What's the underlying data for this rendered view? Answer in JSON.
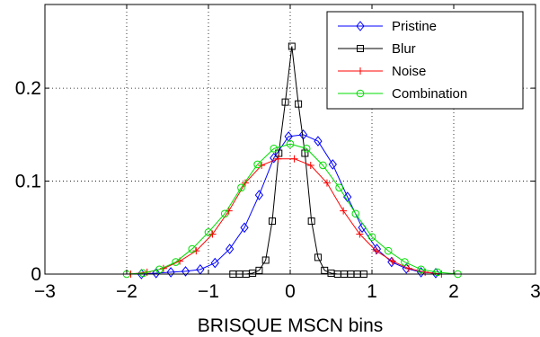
{
  "chart_data": {
    "type": "line",
    "xlabel": "BRISQUE MSCN bins",
    "ylabel": "",
    "xlim": [
      -3,
      3
    ],
    "ylim": [
      0,
      0.29
    ],
    "xticks": [
      -3,
      -2,
      -1,
      0,
      1,
      2,
      3
    ],
    "xtick_labels": [
      "−3",
      "−2",
      "−1",
      "0",
      "1",
      "2",
      "3"
    ],
    "yticks": [
      0,
      0.1,
      0.2
    ],
    "ytick_labels": [
      "0",
      "0.1",
      "0.2"
    ],
    "grid": true,
    "legend_position": "top-right",
    "series": [
      {
        "name": "Pristine",
        "color": "#0000ff",
        "marker": "diamond",
        "x": [
          -1.82,
          -1.64,
          -1.46,
          -1.28,
          -1.1,
          -0.92,
          -0.74,
          -0.56,
          -0.38,
          -0.2,
          -0.02,
          0.16,
          0.34,
          0.52,
          0.7,
          0.88,
          1.06,
          1.24,
          1.42,
          1.6,
          1.78
        ],
        "y": [
          0.0,
          0.001,
          0.002,
          0.003,
          0.005,
          0.012,
          0.027,
          0.05,
          0.085,
          0.125,
          0.148,
          0.15,
          0.143,
          0.118,
          0.083,
          0.05,
          0.027,
          0.013,
          0.006,
          0.002,
          0.001
        ]
      },
      {
        "name": "Blur",
        "color": "#000000",
        "marker": "square",
        "x": [
          -0.7,
          -0.62,
          -0.54,
          -0.46,
          -0.38,
          -0.3,
          -0.22,
          -0.14,
          -0.06,
          0.02,
          0.1,
          0.18,
          0.26,
          0.34,
          0.42,
          0.5,
          0.58,
          0.66,
          0.74,
          0.82,
          0.9
        ],
        "y": [
          0.0,
          0.0,
          0.0,
          0.001,
          0.004,
          0.015,
          0.057,
          0.13,
          0.185,
          0.245,
          0.183,
          0.13,
          0.057,
          0.018,
          0.004,
          0.001,
          0.0,
          0.0,
          0.0,
          0.0,
          0.0
        ]
      },
      {
        "name": "Noise",
        "color": "#ff0000",
        "marker": "plus",
        "x": [
          -1.95,
          -1.75,
          -1.55,
          -1.35,
          -1.15,
          -0.95,
          -0.75,
          -0.55,
          -0.35,
          -0.15,
          0.05,
          0.25,
          0.45,
          0.65,
          0.85,
          1.05,
          1.25,
          1.45,
          1.65,
          1.85
        ],
        "y": [
          0.0,
          0.002,
          0.006,
          0.014,
          0.025,
          0.043,
          0.068,
          0.098,
          0.117,
          0.124,
          0.124,
          0.117,
          0.098,
          0.068,
          0.043,
          0.025,
          0.014,
          0.006,
          0.002,
          0.0
        ]
      },
      {
        "name": "Combination",
        "color": "#00dd00",
        "marker": "circle",
        "x": [
          -2.0,
          -1.8,
          -1.6,
          -1.4,
          -1.2,
          -1.0,
          -0.8,
          -0.6,
          -0.4,
          -0.2,
          0.0,
          0.2,
          0.4,
          0.6,
          0.8,
          1.0,
          1.2,
          1.4,
          1.6,
          1.8,
          2.05
        ],
        "y": [
          0.0,
          0.001,
          0.005,
          0.013,
          0.027,
          0.045,
          0.065,
          0.093,
          0.118,
          0.135,
          0.14,
          0.135,
          0.117,
          0.093,
          0.065,
          0.04,
          0.025,
          0.013,
          0.005,
          0.002,
          0.0
        ]
      }
    ]
  }
}
